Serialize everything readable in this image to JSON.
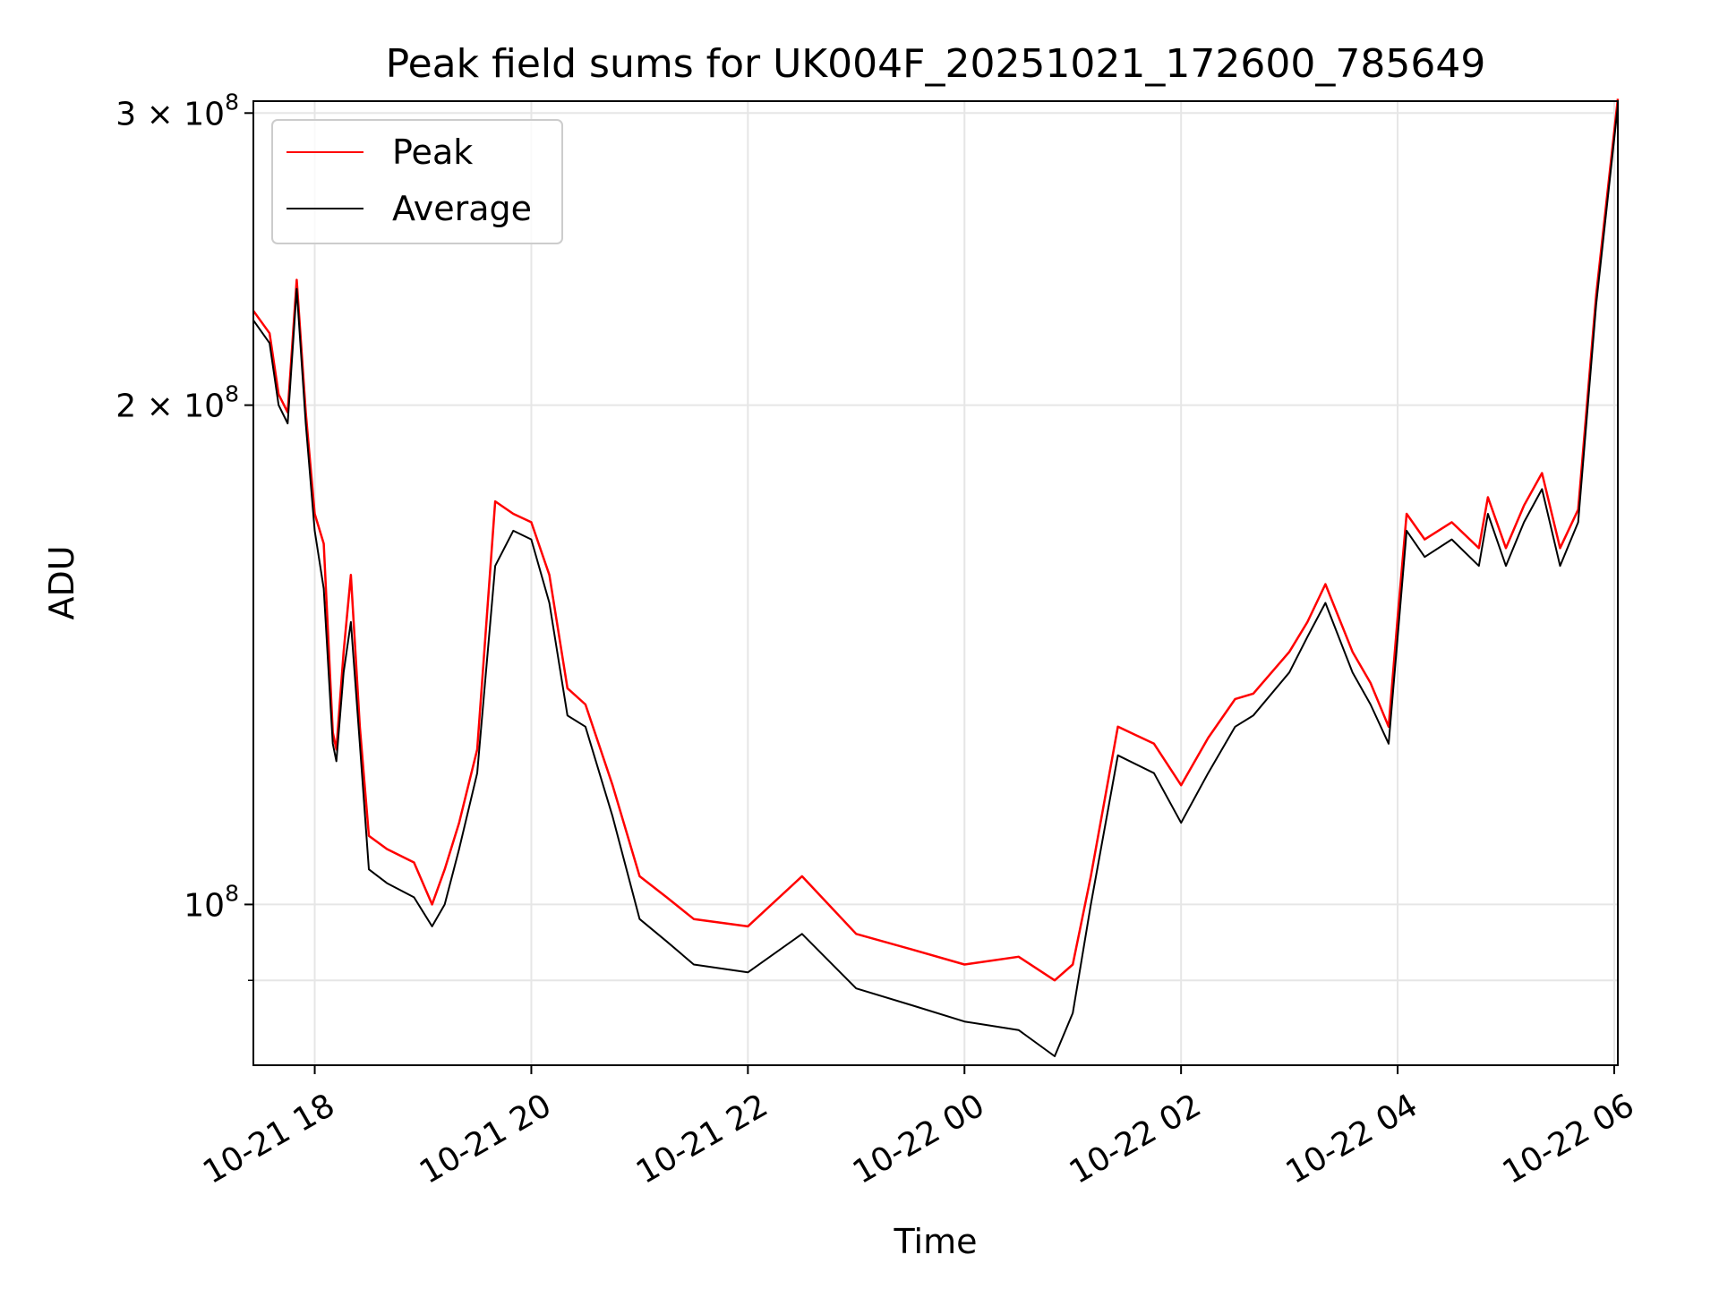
{
  "chart_data": {
    "type": "line",
    "title": "Peak field sums for UK004F_20251021_172600_785649",
    "xlabel": "Time",
    "ylabel": "ADU",
    "x_axis": {
      "start": "2025-10-21T17:26",
      "end": "2025-10-22T06:02",
      "ticks": [
        {
          "label": "10-21 18",
          "time": "2025-10-21T18:00"
        },
        {
          "label": "10-21 20",
          "time": "2025-10-21T20:00"
        },
        {
          "label": "10-21 22",
          "time": "2025-10-21T22:00"
        },
        {
          "label": "10-22 00",
          "time": "2025-10-22T00:00"
        },
        {
          "label": "10-22 02",
          "time": "2025-10-22T02:00"
        },
        {
          "label": "10-22 04",
          "time": "2025-10-22T04:00"
        },
        {
          "label": "10-22 06",
          "time": "2025-10-22T06:00"
        }
      ]
    },
    "y_axis": {
      "scale": "log",
      "ylim": [
        80000000,
        305000000
      ],
      "major_ticks": [
        {
          "value": 100000000,
          "base": "10",
          "exp": "8"
        },
        {
          "value": 200000000,
          "base": "2 × 10",
          "exp": "8"
        },
        {
          "value": 300000000,
          "base": "3 × 10",
          "exp": "8"
        }
      ],
      "minor_ticks": [
        90000000
      ]
    },
    "grid": true,
    "legend": {
      "position": "top-left",
      "entries": [
        "Peak",
        "Average"
      ]
    },
    "series": [
      {
        "name": "Peak",
        "color": "#ff0000"
      },
      {
        "name": "Average",
        "color": "#000000"
      }
    ],
    "x": [
      "2025-10-21T17:26",
      "2025-10-21T17:35",
      "2025-10-21T17:40",
      "2025-10-21T17:45",
      "2025-10-21T17:50",
      "2025-10-21T17:55",
      "2025-10-21T18:00",
      "2025-10-21T18:05",
      "2025-10-21T18:10",
      "2025-10-21T18:12",
      "2025-10-21T18:16",
      "2025-10-21T18:20",
      "2025-10-21T18:25",
      "2025-10-21T18:30",
      "2025-10-21T18:40",
      "2025-10-21T18:55",
      "2025-10-21T19:05",
      "2025-10-21T19:12",
      "2025-10-21T19:20",
      "2025-10-21T19:30",
      "2025-10-21T19:40",
      "2025-10-21T19:50",
      "2025-10-21T20:00",
      "2025-10-21T20:10",
      "2025-10-21T20:20",
      "2025-10-21T20:30",
      "2025-10-21T20:45",
      "2025-10-21T21:00",
      "2025-10-21T21:15",
      "2025-10-21T21:30",
      "2025-10-21T22:00",
      "2025-10-21T22:30",
      "2025-10-21T23:00",
      "2025-10-21T23:30",
      "2025-10-22T00:00",
      "2025-10-22T00:30",
      "2025-10-22T00:50",
      "2025-10-22T01:00",
      "2025-10-22T01:10",
      "2025-10-22T01:25",
      "2025-10-22T01:45",
      "2025-10-22T02:00",
      "2025-10-22T02:15",
      "2025-10-22T02:30",
      "2025-10-22T02:40",
      "2025-10-22T03:00",
      "2025-10-22T03:10",
      "2025-10-22T03:20",
      "2025-10-22T03:35",
      "2025-10-22T03:45",
      "2025-10-22T03:55",
      "2025-10-22T04:00",
      "2025-10-22T04:05",
      "2025-10-22T04:15",
      "2025-10-22T04:30",
      "2025-10-22T04:45",
      "2025-10-22T04:50",
      "2025-10-22T05:00",
      "2025-10-22T05:10",
      "2025-10-22T05:20",
      "2025-10-22T05:30",
      "2025-10-22T05:40",
      "2025-10-22T05:50",
      "2025-10-22T06:02"
    ],
    "average": [
      225000000,
      218000000,
      200000000,
      195000000,
      235000000,
      195000000,
      168000000,
      155000000,
      125000000,
      122000000,
      138000000,
      148000000,
      125000000,
      105000000,
      103000000,
      101000000,
      97000000,
      100000000,
      108000000,
      120000000,
      160000000,
      168000000,
      166000000,
      152000000,
      130000000,
      128000000,
      113000000,
      98000000,
      95000000,
      92000000,
      91000000,
      96000000,
      89000000,
      87000000,
      85000000,
      84000000,
      81000000,
      86000000,
      100000000,
      123000000,
      120000000,
      112000000,
      120000000,
      128000000,
      130000000,
      138000000,
      145000000,
      152000000,
      138000000,
      132000000,
      125000000,
      145000000,
      168000000,
      162000000,
      166000000,
      160000000,
      172000000,
      160000000,
      170000000,
      178000000,
      160000000,
      170000000,
      230000000,
      303000000
    ],
    "peak": [
      228000000,
      221000000,
      203000000,
      198000000,
      238000000,
      198000000,
      172000000,
      165000000,
      127000000,
      124000000,
      142000000,
      158000000,
      128000000,
      110000000,
      108000000,
      106000000,
      100000000,
      105000000,
      112000000,
      124000000,
      175000000,
      172000000,
      170000000,
      158000000,
      135000000,
      132000000,
      118000000,
      104000000,
      101000000,
      98000000,
      97000000,
      104000000,
      96000000,
      94000000,
      92000000,
      93000000,
      90000000,
      92000000,
      104000000,
      128000000,
      125000000,
      118000000,
      126000000,
      133000000,
      134000000,
      142000000,
      148000000,
      156000000,
      142000000,
      136000000,
      128000000,
      149000000,
      172000000,
      166000000,
      170000000,
      164000000,
      176000000,
      164000000,
      174000000,
      182000000,
      164000000,
      173000000,
      233000000,
      306000000
    ]
  }
}
